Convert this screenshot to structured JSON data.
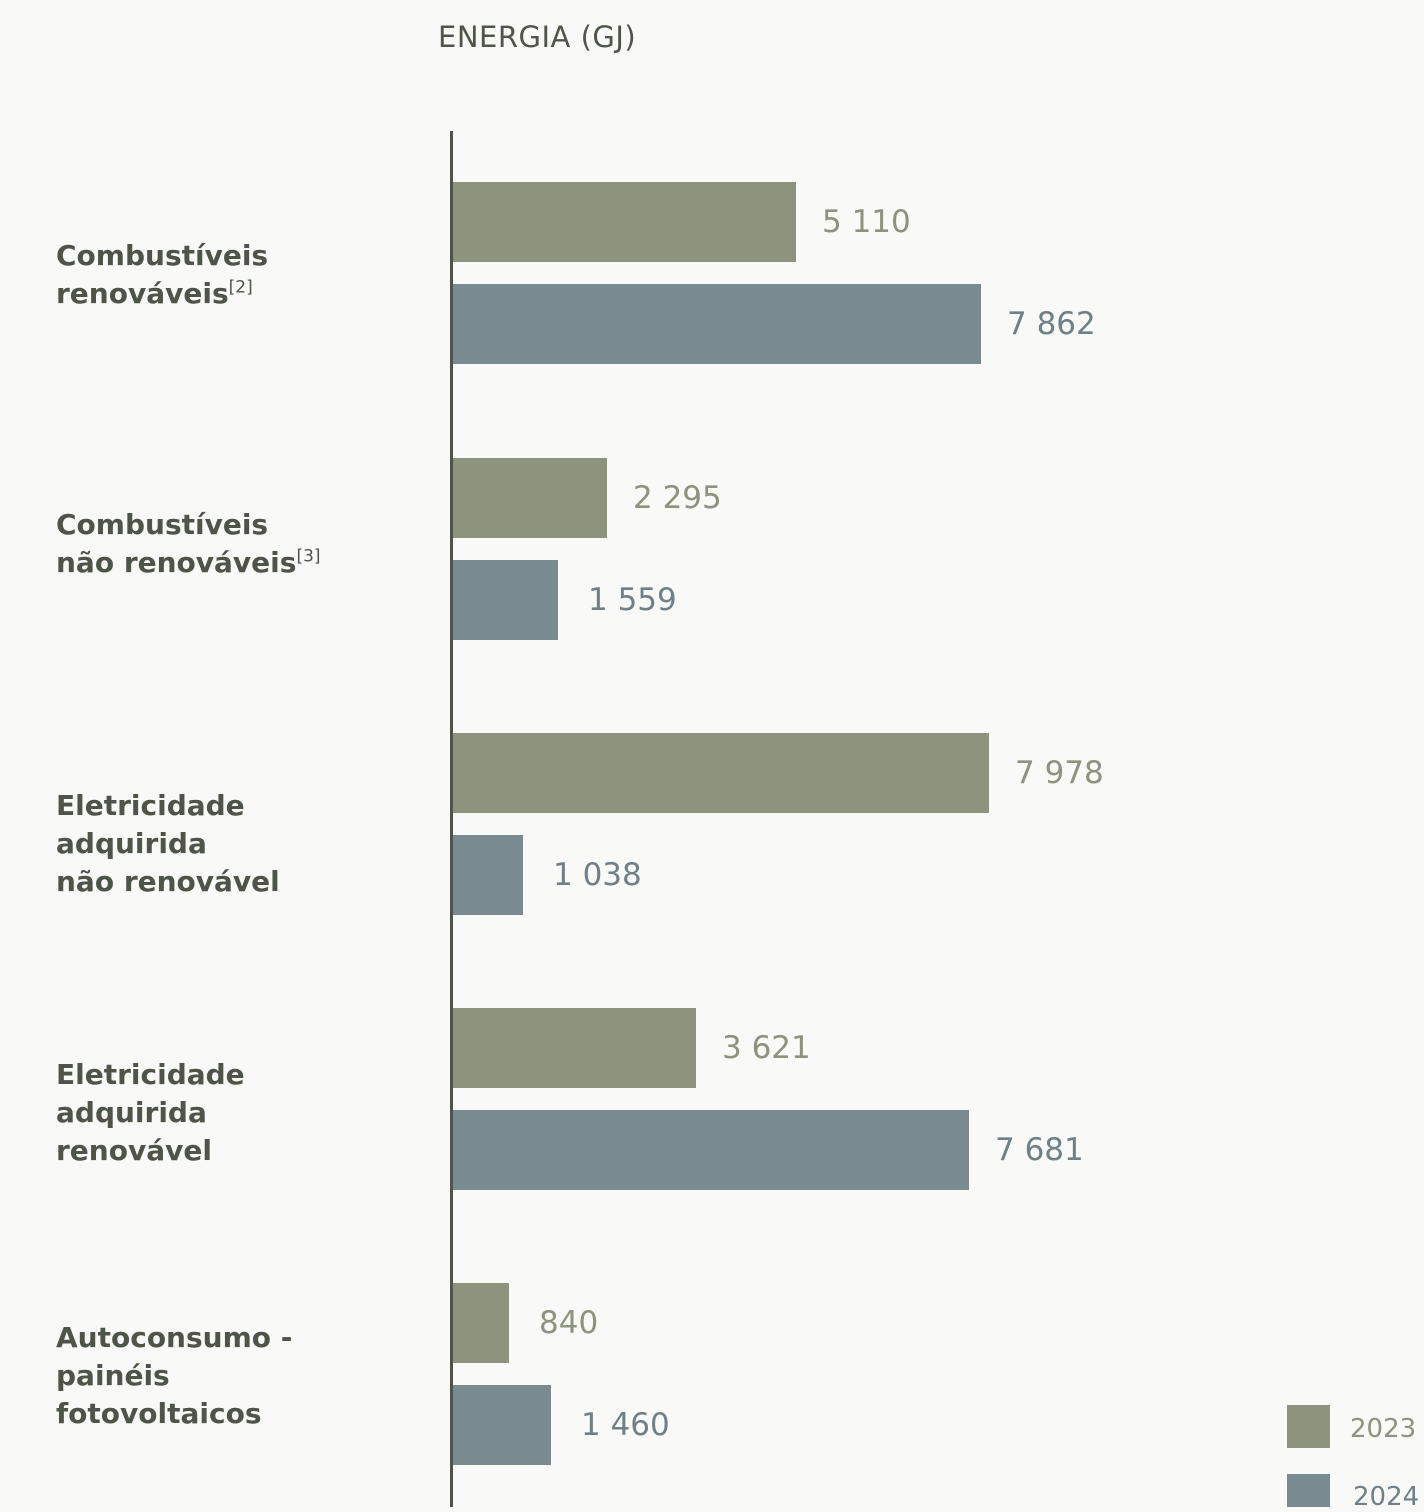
{
  "colors": {
    "series_2023": "#8d937d",
    "series_2024": "#7a8a91",
    "label_2023": "#8d937d",
    "label_2024": "#6f8089",
    "axis": "#4e5447"
  },
  "chart_data": {
    "type": "bar",
    "orientation": "horizontal",
    "title": "ENERGIA (GJ)",
    "categories": [
      {
        "text": "Combustíveis\nrenováveis",
        "sup": "[2]"
      },
      {
        "text": "Combustíveis\nnão renováveis",
        "sup": "[3]"
      },
      {
        "text": "Eletricidade\nadquirida\nnão renovável",
        "sup": ""
      },
      {
        "text": "Eletricidade\nadquirida\nrenovável",
        "sup": ""
      },
      {
        "text": "Autoconsumo -\npainéis\nfotovoltaicos",
        "sup": ""
      }
    ],
    "series": [
      {
        "name": "2023",
        "values": [
          5110,
          2295,
          7978,
          3621,
          840
        ],
        "labels": [
          "5 110",
          "2 295",
          "7 978",
          "3 621",
          "840"
        ]
      },
      {
        "name": "2024",
        "values": [
          7862,
          1559,
          1038,
          7681,
          1460
        ],
        "labels": [
          "7 862",
          "1 559",
          "1 038",
          "7 681",
          "1 460"
        ]
      }
    ],
    "legend": {
      "position": "bottom-right"
    }
  }
}
